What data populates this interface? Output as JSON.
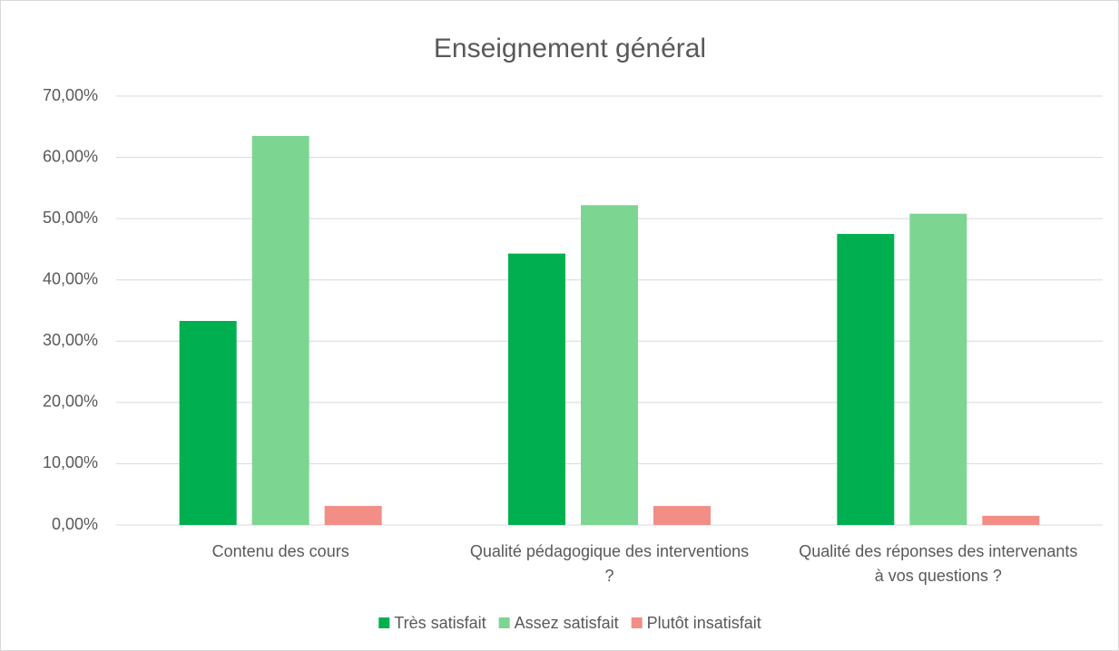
{
  "chart_data": {
    "type": "bar",
    "title": "Enseignement général",
    "categories": [
      "Contenu des cours",
      "Qualité pédagogique des interventions ?",
      "Qualité des réponses des intervenants à vos questions ?"
    ],
    "series": [
      {
        "name": "Très satisfait",
        "color": "#00b050",
        "values": [
          33.3,
          44.3,
          47.5
        ]
      },
      {
        "name": "Assez satisfait",
        "color": "#7dd592",
        "values": [
          63.5,
          52.2,
          50.8
        ]
      },
      {
        "name": "Plutôt insatisfait",
        "color": "#f28e86",
        "values": [
          3.1,
          3.1,
          1.5
        ]
      }
    ],
    "ylim": [
      0,
      70
    ],
    "yticks": [
      {
        "value": 0,
        "label": "0,00%"
      },
      {
        "value": 10,
        "label": "10,00%"
      },
      {
        "value": 20,
        "label": "20,00%"
      },
      {
        "value": 30,
        "label": "30,00%"
      },
      {
        "value": 40,
        "label": "40,00%"
      },
      {
        "value": 50,
        "label": "50,00%"
      },
      {
        "value": 60,
        "label": "60,00%"
      },
      {
        "value": 70,
        "label": "70,00%"
      }
    ],
    "grid": true,
    "legend": "bottom"
  }
}
